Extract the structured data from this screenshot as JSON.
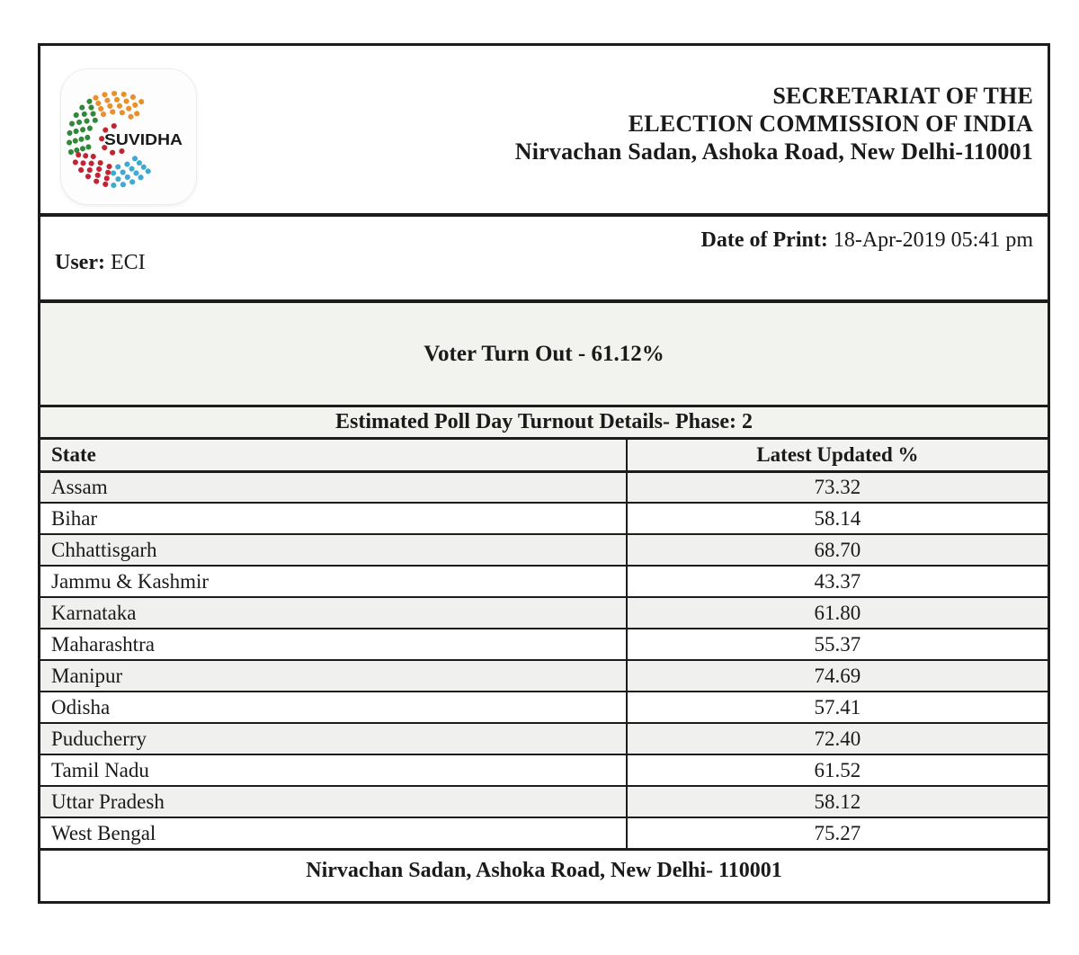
{
  "header": {
    "logo_text": "SUVIDHA",
    "org_line1": "SECRETARIAT OF THE",
    "org_line2": "ELECTION COMMISSION OF INDIA",
    "org_line3": "Nirvachan Sadan, Ashoka Road, New Delhi-110001"
  },
  "info": {
    "user_label": "User:",
    "user_value": "ECI",
    "date_label": "Date of Print:",
    "date_value": "18-Apr-2019 05:41 pm"
  },
  "turnout_banner": {
    "title": "Voter Turn Out - 61.12%"
  },
  "table": {
    "title": "Estimated Poll Day Turnout Details- Phase: 2",
    "columns": [
      "State",
      "Latest Updated %"
    ],
    "rows": [
      {
        "state": "Assam",
        "percent": "73.32"
      },
      {
        "state": "Bihar",
        "percent": "58.14"
      },
      {
        "state": "Chhattisgarh",
        "percent": "68.70"
      },
      {
        "state": "Jammu & Kashmir",
        "percent": "43.37"
      },
      {
        "state": "Karnataka",
        "percent": "61.80"
      },
      {
        "state": "Maharashtra",
        "percent": "55.37"
      },
      {
        "state": "Manipur",
        "percent": "74.69"
      },
      {
        "state": "Odisha",
        "percent": "57.41"
      },
      {
        "state": "Puducherry",
        "percent": "72.40"
      },
      {
        "state": "Tamil Nadu",
        "percent": "61.52"
      },
      {
        "state": "Uttar Pradesh",
        "percent": "58.12"
      },
      {
        "state": "West Bengal",
        "percent": "75.27"
      }
    ]
  },
  "footer": {
    "address": "Nirvachan Sadan, Ashoka Road, New Delhi- 110001"
  },
  "colors": {
    "border": "#1c1c1c",
    "band_bg": "#f2f2ef",
    "row_alt_bg": "#f0f0ee",
    "logo_orange": "#e8912a",
    "logo_green": "#31883a",
    "logo_red": "#c22433",
    "logo_blue": "#3fa9cf",
    "logo_text": "#1a1a1a"
  }
}
